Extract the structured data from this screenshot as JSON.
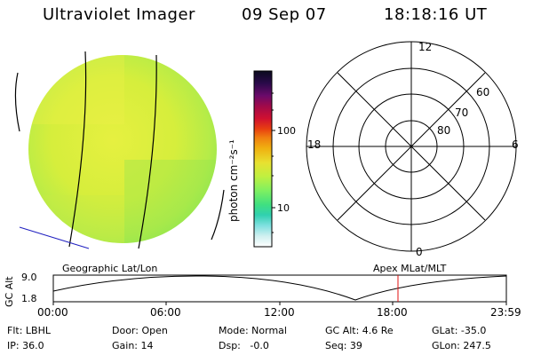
{
  "header": {
    "title": "Ultraviolet Imager",
    "date": "09 Sep 07",
    "time": "18:18:16 UT"
  },
  "colorbar": {
    "label": "photon cm⁻²s⁻¹",
    "ticks": [
      "100",
      "10"
    ],
    "colors": [
      "#0a0a1e",
      "#2a0a4a",
      "#6a0a6a",
      "#a00a4a",
      "#d01030",
      "#e84010",
      "#f08010",
      "#f0b010",
      "#e8e030",
      "#c0f040",
      "#80f060",
      "#40e080",
      "#30d0b0",
      "#80e0e0",
      "#d0f0f0",
      "#ffffff"
    ]
  },
  "polar": {
    "mlt_labels": {
      "top": "12",
      "left": "18",
      "right": "6",
      "bottom": "0"
    },
    "lat_labels": [
      "60",
      "70",
      "80"
    ]
  },
  "strip": {
    "left_label": "Geographic Lat/Lon",
    "right_label": "Apex MLat/MLT",
    "y_label": "GC Alt",
    "y_ticks": [
      "9.0",
      "1.8"
    ],
    "x_ticks": [
      "00:00",
      "06:00",
      "12:00",
      "18:00",
      "23:59"
    ]
  },
  "info": {
    "flt": "Flt: LBHL",
    "door": "Door: Open",
    "mode": "Mode: Normal",
    "gc_alt": "GC Alt: 4.6 Re",
    "glat": "GLat: -35.0",
    "ip": "IP: 36.0",
    "gain": "Gain: 14",
    "dsp": "Dsp:   -0.0",
    "seq": "Seq: 39",
    "glon": "GLon: 247.5"
  }
}
